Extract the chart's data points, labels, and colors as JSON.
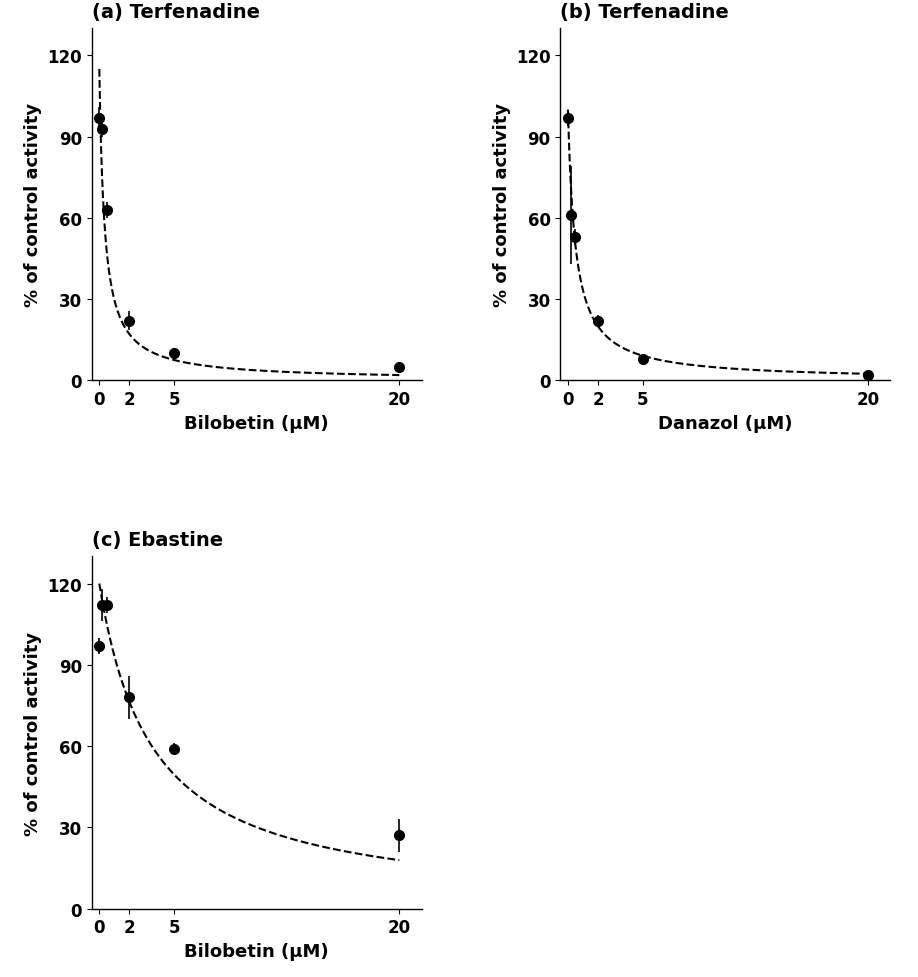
{
  "panels": [
    {
      "title": "(a) Terfenadine",
      "xlabel": "Bilobetin (μM)",
      "ylabel": "% of control activity",
      "x_data": [
        0.0,
        0.2,
        0.5,
        2.0,
        5.0,
        20.0
      ],
      "y_data": [
        97.0,
        93.0,
        63.0,
        22.0,
        10.0,
        5.0
      ],
      "y_err": [
        4.0,
        3.0,
        3.0,
        3.5,
        2.0,
        1.0
      ],
      "fit_params": [
        115.0,
        0.35
      ]
    },
    {
      "title": "(b) Terfenadine",
      "xlabel": "Danazol (μM)",
      "ylabel": "% of control activity",
      "x_data": [
        0.0,
        0.2,
        0.5,
        2.0,
        5.0,
        20.0
      ],
      "y_data": [
        97.0,
        61.0,
        53.0,
        22.0,
        8.0,
        2.0
      ],
      "y_err": [
        3.0,
        18.0,
        3.0,
        2.0,
        1.5,
        0.5
      ],
      "fit_params": [
        100.0,
        0.5
      ]
    },
    {
      "title": "(c) Ebastine",
      "xlabel": "Bilobetin (μM)",
      "ylabel": "% of control activity",
      "x_data": [
        0.0,
        0.2,
        0.5,
        2.0,
        5.0,
        20.0
      ],
      "y_data": [
        97.0,
        112.0,
        112.0,
        78.0,
        59.0,
        27.0
      ],
      "y_err": [
        3.0,
        6.0,
        3.0,
        8.0,
        2.0,
        6.0
      ],
      "fit_params": [
        120.0,
        3.5
      ]
    }
  ],
  "ylim": [
    0,
    130
  ],
  "yticks": [
    0,
    30,
    60,
    90,
    120
  ],
  "xticks": [
    0,
    2,
    5,
    20
  ],
  "xlim": [
    -0.5,
    21.5
  ],
  "background_color": "#ffffff",
  "line_color": "#000000",
  "marker_color": "#000000",
  "title_fontsize": 14,
  "label_fontsize": 13,
  "tick_fontsize": 12
}
